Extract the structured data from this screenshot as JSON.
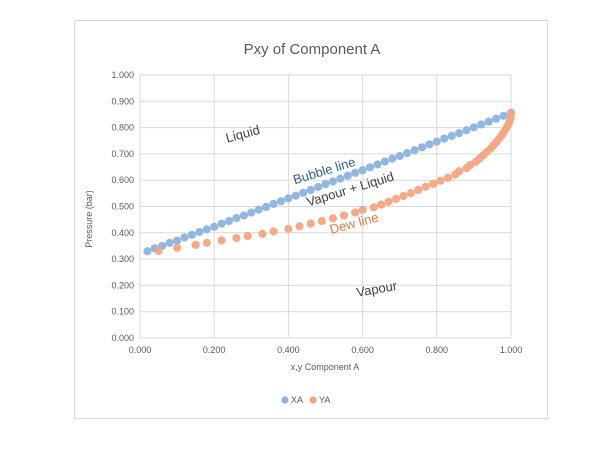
{
  "chart_data": {
    "type": "scatter",
    "title": "Pxy of Component A",
    "xlabel": "x,y Component A",
    "ylabel": "Pressure (bar)",
    "xlim": [
      0,
      1
    ],
    "ylim": [
      0,
      1
    ],
    "x_ticks": [
      "0.000",
      "0.200",
      "0.400",
      "0.600",
      "0.800",
      "1.000"
    ],
    "y_ticks": [
      "0.000",
      "0.100",
      "0.200",
      "0.300",
      "0.400",
      "0.500",
      "0.600",
      "0.700",
      "0.800",
      "0.900",
      "1.000"
    ],
    "grid": true,
    "legend_position": "bottom",
    "series": [
      {
        "name": "XA",
        "color": "#8db3e2",
        "points": [
          [
            0.02,
            0.33
          ],
          [
            0.04,
            0.341
          ],
          [
            0.06,
            0.35
          ],
          [
            0.08,
            0.362
          ],
          [
            0.1,
            0.37
          ],
          [
            0.12,
            0.382
          ],
          [
            0.14,
            0.392
          ],
          [
            0.16,
            0.403
          ],
          [
            0.18,
            0.413
          ],
          [
            0.2,
            0.423
          ],
          [
            0.22,
            0.435
          ],
          [
            0.24,
            0.445
          ],
          [
            0.26,
            0.456
          ],
          [
            0.28,
            0.466
          ],
          [
            0.3,
            0.477
          ],
          [
            0.32,
            0.488
          ],
          [
            0.34,
            0.498
          ],
          [
            0.36,
            0.51
          ],
          [
            0.38,
            0.52
          ],
          [
            0.4,
            0.531
          ],
          [
            0.42,
            0.541
          ],
          [
            0.44,
            0.552
          ],
          [
            0.46,
            0.563
          ],
          [
            0.48,
            0.574
          ],
          [
            0.5,
            0.585
          ],
          [
            0.52,
            0.595
          ],
          [
            0.54,
            0.606
          ],
          [
            0.56,
            0.617
          ],
          [
            0.58,
            0.628
          ],
          [
            0.6,
            0.638
          ],
          [
            0.62,
            0.649
          ],
          [
            0.64,
            0.66
          ],
          [
            0.66,
            0.671
          ],
          [
            0.68,
            0.682
          ],
          [
            0.7,
            0.692
          ],
          [
            0.72,
            0.703
          ],
          [
            0.74,
            0.714
          ],
          [
            0.76,
            0.725
          ],
          [
            0.78,
            0.736
          ],
          [
            0.8,
            0.747
          ],
          [
            0.82,
            0.758
          ],
          [
            0.84,
            0.768
          ],
          [
            0.86,
            0.779
          ],
          [
            0.88,
            0.79
          ],
          [
            0.9,
            0.801
          ],
          [
            0.92,
            0.812
          ],
          [
            0.94,
            0.823
          ],
          [
            0.96,
            0.834
          ],
          [
            0.98,
            0.845
          ],
          [
            1.0,
            0.856
          ]
        ]
      },
      {
        "name": "YA",
        "color": "#f4a582",
        "points": [
          [
            0.05,
            0.331
          ],
          [
            0.1,
            0.343
          ],
          [
            0.15,
            0.354
          ],
          [
            0.18,
            0.362
          ],
          [
            0.22,
            0.371
          ],
          [
            0.26,
            0.38
          ],
          [
            0.29,
            0.388
          ],
          [
            0.33,
            0.396
          ],
          [
            0.36,
            0.405
          ],
          [
            0.4,
            0.415
          ],
          [
            0.43,
            0.425
          ],
          [
            0.46,
            0.435
          ],
          [
            0.49,
            0.445
          ],
          [
            0.52,
            0.455
          ],
          [
            0.55,
            0.466
          ],
          [
            0.58,
            0.477
          ],
          [
            0.6,
            0.487
          ],
          [
            0.63,
            0.497
          ],
          [
            0.65,
            0.507
          ],
          [
            0.67,
            0.518
          ],
          [
            0.69,
            0.529
          ],
          [
            0.71,
            0.54
          ],
          [
            0.73,
            0.551
          ],
          [
            0.75,
            0.563
          ],
          [
            0.77,
            0.575
          ],
          [
            0.79,
            0.586
          ],
          [
            0.81,
            0.598
          ],
          [
            0.83,
            0.609
          ],
          [
            0.85,
            0.622
          ],
          [
            0.86,
            0.634
          ],
          [
            0.88,
            0.646
          ],
          [
            0.89,
            0.658
          ],
          [
            0.905,
            0.67
          ],
          [
            0.915,
            0.682
          ],
          [
            0.925,
            0.695
          ],
          [
            0.935,
            0.708
          ],
          [
            0.945,
            0.72
          ],
          [
            0.953,
            0.733
          ],
          [
            0.961,
            0.746
          ],
          [
            0.968,
            0.758
          ],
          [
            0.975,
            0.771
          ],
          [
            0.981,
            0.784
          ],
          [
            0.987,
            0.797
          ],
          [
            0.992,
            0.81
          ],
          [
            0.996,
            0.823
          ],
          [
            0.999,
            0.836
          ],
          [
            1.0,
            0.856
          ]
        ]
      }
    ],
    "annotations": [
      {
        "text": "Liquid",
        "x": 0.28,
        "y": 0.76,
        "color": "#404040",
        "rotate": -15
      },
      {
        "text": "Bubble line",
        "x": 0.5,
        "y": 0.62,
        "color": "#2e5f8a",
        "rotate": -17
      },
      {
        "text": "Vapour + Liquid",
        "x": 0.57,
        "y": 0.55,
        "color": "#404040",
        "rotate": -17
      },
      {
        "text": "Dew line",
        "x": 0.58,
        "y": 0.42,
        "color": "#e07a45",
        "rotate": -15
      },
      {
        "text": "Vapour",
        "x": 0.64,
        "y": 0.17,
        "color": "#404040",
        "rotate": -10
      }
    ]
  }
}
